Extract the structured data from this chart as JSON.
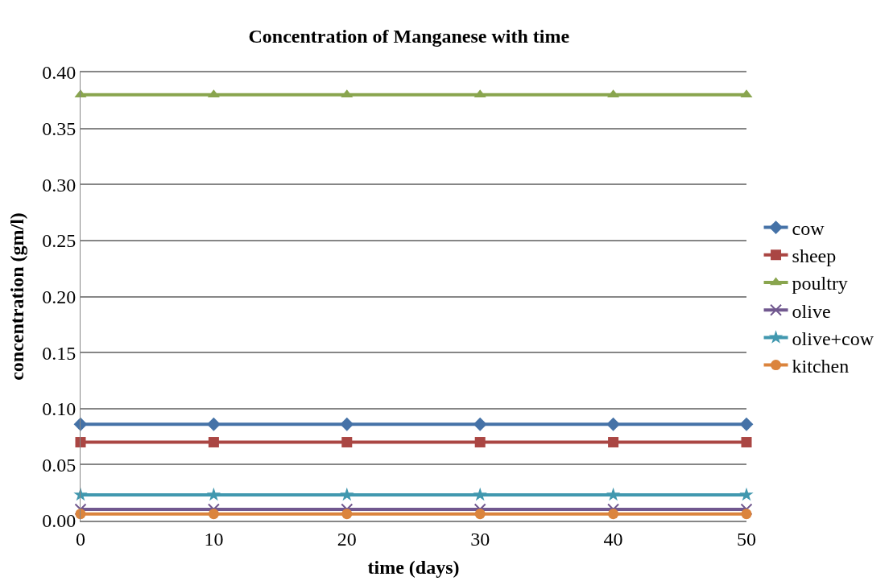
{
  "chart_data": {
    "type": "line",
    "title": "Concentration of Manganese with time",
    "xlabel": "time (days)",
    "ylabel": "concentration (gm/l)",
    "x": [
      0,
      10,
      20,
      30,
      40,
      50
    ],
    "xlim": [
      0,
      50
    ],
    "xticks": [
      0,
      10,
      20,
      30,
      40,
      50
    ],
    "ylim": [
      0,
      0.4
    ],
    "yticks": [
      {
        "value": 0,
        "label": "0.00"
      },
      {
        "value": 0.05,
        "label": "0.05"
      },
      {
        "value": 0.1,
        "label": "0.10"
      },
      {
        "value": 0.15,
        "label": "0.15"
      },
      {
        "value": 0.2,
        "label": "0.20"
      },
      {
        "value": 0.25,
        "label": "0.25"
      },
      {
        "value": 0.3,
        "label": "0.30"
      },
      {
        "value": 0.35,
        "label": "0.35"
      },
      {
        "value": 0.4,
        "label": "0.40"
      }
    ],
    "grid": "y",
    "legend": "right",
    "line_style": "solid",
    "series": [
      {
        "name": "cow",
        "color": "#4572a7",
        "marker": "diamond",
        "values": [
          0.086,
          0.086,
          0.086,
          0.086,
          0.086,
          0.086
        ]
      },
      {
        "name": "sheep",
        "color": "#aa4643",
        "marker": "square",
        "values": [
          0.07,
          0.07,
          0.07,
          0.07,
          0.07,
          0.07
        ]
      },
      {
        "name": "poultry",
        "color": "#89a54e",
        "marker": "triangle",
        "values": [
          0.38,
          0.38,
          0.38,
          0.38,
          0.38,
          0.38
        ]
      },
      {
        "name": "olive",
        "color": "#71588f",
        "marker": "cross",
        "values": [
          0.01,
          0.01,
          0.01,
          0.01,
          0.01,
          0.01
        ]
      },
      {
        "name": "olive+cow",
        "color": "#4198af",
        "marker": "star",
        "values": [
          0.023,
          0.023,
          0.023,
          0.023,
          0.023,
          0.023
        ]
      },
      {
        "name": "kitchen",
        "color": "#db843d",
        "marker": "circle",
        "values": [
          0.006,
          0.006,
          0.006,
          0.006,
          0.006,
          0.006
        ]
      }
    ]
  }
}
